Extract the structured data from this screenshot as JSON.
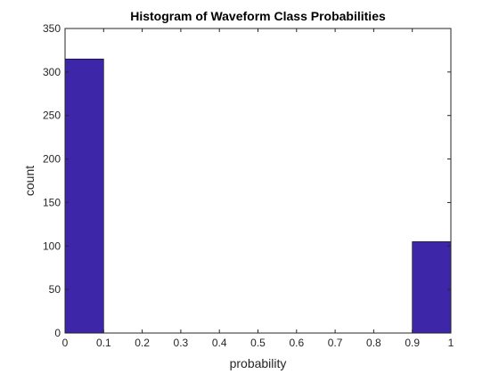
{
  "chart_data": {
    "type": "bar",
    "title": "Histogram of Waveform Class Probabilities",
    "xlabel": "probability",
    "ylabel": "count",
    "xlim": [
      0,
      1
    ],
    "ylim": [
      0,
      350
    ],
    "x_ticks": [
      "0",
      "0.1",
      "0.2",
      "0.3",
      "0.4",
      "0.5",
      "0.6",
      "0.7",
      "0.8",
      "0.9",
      "1"
    ],
    "y_ticks": [
      "0",
      "50",
      "100",
      "150",
      "200",
      "250",
      "300",
      "350"
    ],
    "bin_edges": [
      0,
      0.1,
      0.2,
      0.3,
      0.4,
      0.5,
      0.6,
      0.7,
      0.8,
      0.9,
      1.0
    ],
    "values": [
      315,
      0,
      0,
      0,
      0,
      0,
      0,
      0,
      0,
      105
    ],
    "bar_color": "#3e26a8",
    "grid": false,
    "box": true
  }
}
